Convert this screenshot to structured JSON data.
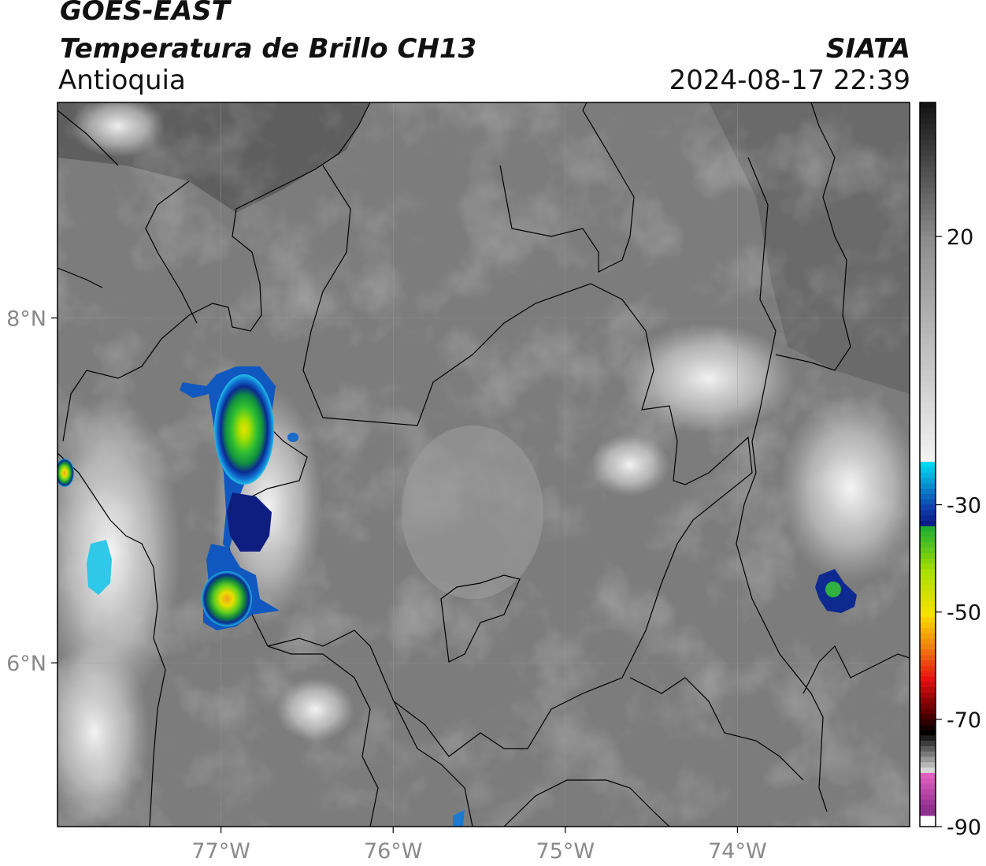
{
  "header": {
    "satellite": "GOES-EAST",
    "product": "Temperatura de Brillo CH13",
    "region": "Antioquia",
    "agency": "SIATA",
    "datetime": "2024-08-17 22:39"
  },
  "map": {
    "lon_range": [
      -77.95,
      -73.0
    ],
    "lat_range": [
      5.05,
      9.25
    ],
    "lat_ticks": [
      {
        "value": 8,
        "label": "8°N"
      },
      {
        "value": 6,
        "label": "6°N"
      }
    ],
    "lon_ticks": [
      {
        "value": -77,
        "label": "77°W"
      },
      {
        "value": -76,
        "label": "76°W"
      },
      {
        "value": -75,
        "label": "75°W"
      },
      {
        "value": -74,
        "label": "74°W"
      }
    ]
  },
  "colorbar": {
    "unit_range": [
      -90,
      45
    ],
    "tick_labels": [
      {
        "value": 20,
        "label": "20"
      },
      {
        "value": -30,
        "label": "-30"
      },
      {
        "value": -50,
        "label": "-50"
      },
      {
        "value": -70,
        "label": "-70"
      },
      {
        "value": -90,
        "label": "-90"
      }
    ],
    "colors": {
      "warm_dark": "#141414",
      "warm_mid": "#8c8c8c",
      "cold_white": "#f4f4f4",
      "cyan": "#00d8f0",
      "blue": "#1040b0",
      "navy": "#08107a",
      "green": "#20b030",
      "lime": "#a8e000",
      "yellow": "#f8e000",
      "orange": "#f08010",
      "red": "#e81010",
      "darkred": "#600000",
      "black": "#000000",
      "grey": "#707070",
      "pink": "#e060c0",
      "purple": "#903090"
    }
  },
  "convective_cells": [
    {
      "lon": -76.88,
      "lat": 7.27,
      "size_deg": 0.28
    },
    {
      "lon": -76.97,
      "lat": 6.31,
      "size_deg": 0.22
    },
    {
      "lon": -73.45,
      "lat": 6.38,
      "size_deg": 0.1
    },
    {
      "lon": -77.93,
      "lat": 7.08,
      "size_deg": 0.06
    }
  ]
}
